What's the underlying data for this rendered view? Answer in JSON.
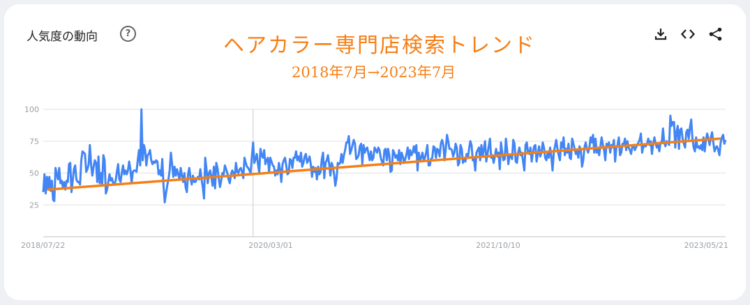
{
  "header": {
    "widget_title": "人気度の動向",
    "help_icon": "?",
    "annotation_title": "ヘアカラー専門店検索トレンド",
    "annotation_subtitle": "2018年7月→2023年7月"
  },
  "toolbar": {
    "icons": [
      "download-icon",
      "embed-code-icon",
      "share-icon"
    ]
  },
  "colors": {
    "series": "#4285f4",
    "trend": "#f57f17",
    "grid": "#e0e0e0",
    "axis_text": "#9aa0a6"
  },
  "chart_data": {
    "type": "line",
    "title": "ヘアカラー専門店検索トレンド",
    "subtitle": "2018年7月→2023年7月",
    "xlabel": "",
    "ylabel": "",
    "ylim": [
      0,
      100
    ],
    "yticks": [
      25,
      50,
      75,
      100
    ],
    "ytick_labels": [
      "25",
      "50",
      "75",
      "100"
    ],
    "xtick_labels": [
      "2018/07/22",
      "2020/03/01",
      "2021/10/10",
      "2023/05/21"
    ],
    "grid": true,
    "hover_index": 171,
    "series": [
      {
        "values": [
          35,
          49,
          34,
          47,
          37,
          47,
          36,
          44,
          29,
          28,
          54,
          49,
          45,
          54,
          42,
          44,
          39,
          43,
          37,
          44,
          43,
          57,
          58,
          35,
          44,
          53,
          56,
          45,
          43,
          43,
          41,
          60,
          67,
          66,
          65,
          51,
          53,
          57,
          72,
          56,
          48,
          55,
          60,
          58,
          43,
          63,
          42,
          50,
          41,
          64,
          60,
          34,
          37,
          43,
          49,
          44,
          46,
          42,
          41,
          44,
          51,
          57,
          45,
          43,
          50,
          56,
          49,
          52,
          49,
          52,
          59,
          53,
          42,
          51,
          52,
          52,
          51,
          60,
          68,
          56,
          100,
          60,
          72,
          68,
          56,
          64,
          65,
          68,
          60,
          57,
          59,
          58,
          60,
          59,
          49,
          52,
          48,
          61,
          40,
          27,
          34,
          40,
          45,
          52,
          66,
          57,
          47,
          55,
          48,
          53,
          49,
          45,
          54,
          48,
          43,
          50,
          39,
          35,
          49,
          54,
          46,
          41,
          48,
          43,
          43,
          45,
          47,
          45,
          53,
          45,
          39,
          30,
          62,
          53,
          42,
          50,
          52,
          47,
          40,
          55,
          38,
          58,
          54,
          46,
          39,
          44,
          50,
          49,
          56,
          53,
          50,
          45,
          42,
          49,
          52,
          50,
          46,
          58,
          51,
          50,
          53,
          54,
          51,
          46,
          62,
          58,
          55,
          54,
          52,
          50,
          63,
          74,
          58,
          61,
          65,
          57,
          50,
          69,
          64,
          62,
          68,
          57,
          60,
          62,
          51,
          62,
          59,
          56,
          55,
          48,
          52,
          49,
          58,
          53,
          43,
          57,
          60,
          62,
          56,
          49,
          50,
          61,
          60,
          54,
          62,
          62,
          67,
          60,
          63,
          59,
          66,
          55,
          58,
          63,
          65,
          58,
          60,
          63,
          57,
          47,
          55,
          51,
          54,
          45,
          55,
          49,
          51,
          61,
          66,
          46,
          58,
          60,
          64,
          57,
          48,
          58,
          55,
          49,
          40,
          46,
          58,
          57,
          58,
          65,
          58,
          64,
          68,
          74,
          74,
          79,
          65,
          68,
          72,
          76,
          73,
          61,
          62,
          64,
          71,
          73,
          57,
          72,
          66,
          69,
          70,
          65,
          60,
          67,
          60,
          62,
          70,
          68,
          66,
          70,
          68,
          62,
          59,
          56,
          68,
          69,
          60,
          69,
          64,
          51,
          52,
          68,
          66,
          62,
          64,
          60,
          68,
          57,
          66,
          63,
          58,
          61,
          65,
          70,
          61,
          68,
          64,
          66,
          71,
          66,
          72,
          52,
          66,
          60,
          62,
          66,
          60,
          62,
          66,
          72,
          56,
          56,
          61,
          62,
          71,
          70,
          62,
          69,
          68,
          63,
          73,
          76,
          72,
          60,
          69,
          80,
          75,
          69,
          69,
          68,
          63,
          66,
          73,
          70,
          56,
          58,
          72,
          69,
          58,
          61,
          59,
          65,
          62,
          69,
          75,
          72,
          60,
          61,
          52,
          66,
          68,
          70,
          60,
          72,
          63,
          69,
          75,
          59,
          65,
          71,
          77,
          62,
          64,
          58,
          63,
          69,
          63,
          66,
          53,
          74,
          66,
          60,
          61,
          77,
          68,
          57,
          64,
          63,
          61,
          76,
          73,
          59,
          58,
          66,
          70,
          64,
          66,
          59,
          52,
          72,
          74,
          66,
          65,
          70,
          59,
          66,
          71,
          72,
          59,
          65,
          71,
          63,
          66,
          74,
          70,
          62,
          60,
          66,
          62,
          70,
          63,
          52,
          66,
          71,
          76,
          69,
          64,
          60,
          74,
          70,
          78,
          64,
          69,
          66,
          73,
          62,
          61,
          77,
          73,
          69,
          65,
          67,
          62,
          71,
          68,
          55,
          60,
          70,
          74,
          69,
          66,
          70,
          78,
          74,
          80,
          66,
          77,
          66,
          70,
          64,
          71,
          78,
          72,
          68,
          60,
          73,
          71,
          74,
          66,
          72,
          70,
          76,
          59,
          70,
          72,
          78,
          64,
          66,
          73,
          72,
          77,
          68,
          75,
          70,
          68,
          65,
          71,
          72,
          68,
          70,
          72,
          74,
          76,
          81,
          66,
          71,
          71,
          71,
          73,
          77,
          72,
          75,
          65,
          73,
          78,
          73,
          70,
          72,
          67,
          74,
          74,
          85,
          74,
          71,
          75,
          74,
          72,
          95,
          87,
          90,
          90,
          70,
          82,
          87,
          69,
          84,
          85,
          77,
          73,
          70,
          82,
          84,
          77,
          86,
          92,
          77,
          70,
          67,
          78,
          70,
          71,
          69,
          72,
          68,
          78,
          67,
          76,
          81,
          77,
          72,
          78,
          82,
          74,
          67,
          70,
          71,
          68,
          64,
          74,
          78,
          80,
          73,
          76
        ]
      },
      {
        "name": "",
        "values": [
          37,
          77
        ]
      }
    ]
  }
}
